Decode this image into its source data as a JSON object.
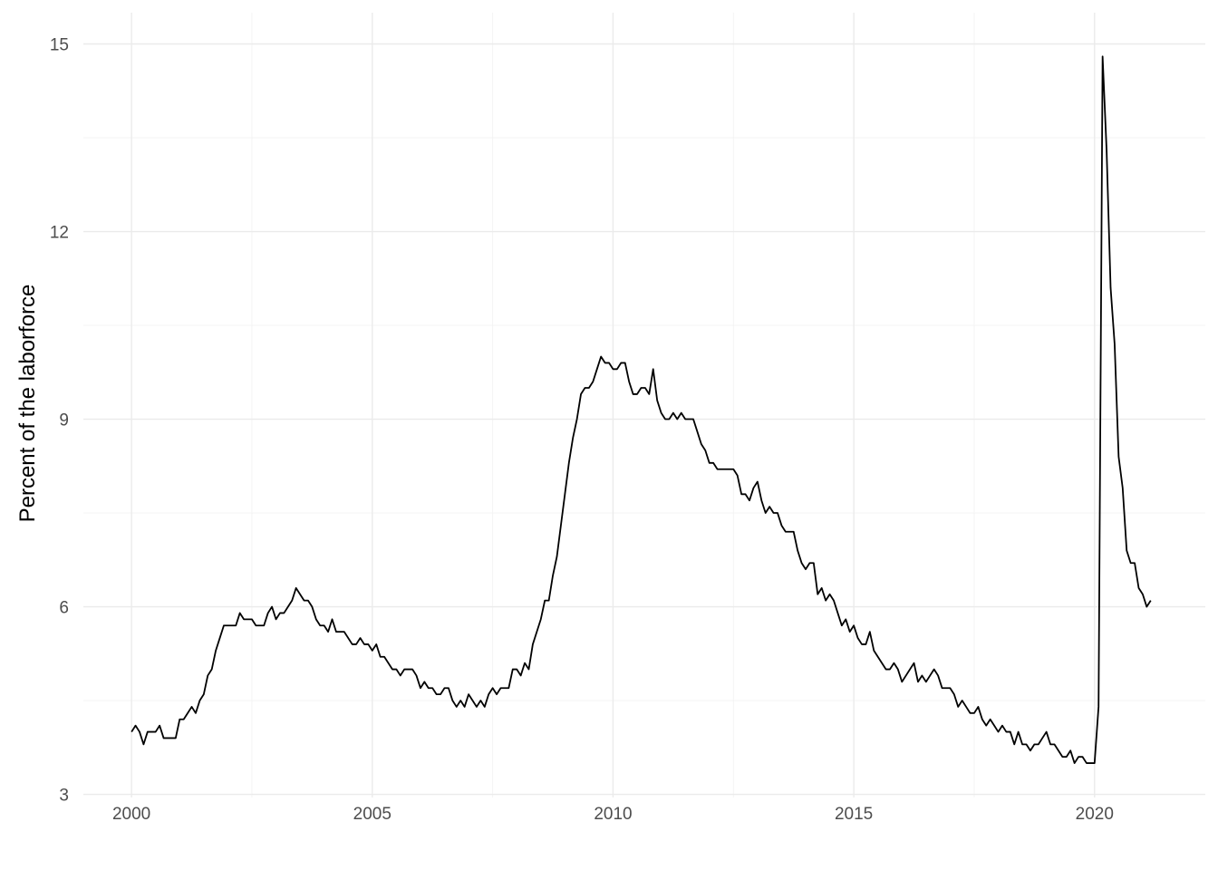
{
  "chart_data": {
    "type": "line",
    "title": "",
    "xlabel": "",
    "ylabel": "Percent of the laborforce",
    "xlim": [
      1999,
      2022.3
    ],
    "ylim": [
      2.95,
      15.5
    ],
    "x_ticks": [
      2000,
      2005,
      2010,
      2015,
      2020
    ],
    "x_tick_labels": [
      "2000",
      "2005",
      "2010",
      "2015",
      "2020"
    ],
    "y_ticks": [
      3,
      6,
      9,
      12,
      15
    ],
    "y_tick_labels": [
      "3",
      "6",
      "9",
      "12",
      "15"
    ],
    "grid": true,
    "legend": "none",
    "series": [
      {
        "x_start": 2000.0,
        "x_step_months": 1,
        "values": [
          4.0,
          4.1,
          4.0,
          3.8,
          4.0,
          4.0,
          4.0,
          4.1,
          3.9,
          3.9,
          3.9,
          3.9,
          4.2,
          4.2,
          4.3,
          4.4,
          4.3,
          4.5,
          4.6,
          4.9,
          5.0,
          5.3,
          5.5,
          5.7,
          5.7,
          5.7,
          5.7,
          5.9,
          5.8,
          5.8,
          5.8,
          5.7,
          5.7,
          5.7,
          5.9,
          6.0,
          5.8,
          5.9,
          5.9,
          6.0,
          6.1,
          6.3,
          6.2,
          6.1,
          6.1,
          6.0,
          5.8,
          5.7,
          5.7,
          5.6,
          5.8,
          5.6,
          5.6,
          5.6,
          5.5,
          5.4,
          5.4,
          5.5,
          5.4,
          5.4,
          5.3,
          5.4,
          5.2,
          5.2,
          5.1,
          5.0,
          5.0,
          4.9,
          5.0,
          5.0,
          5.0,
          4.9,
          4.7,
          4.8,
          4.7,
          4.7,
          4.6,
          4.6,
          4.7,
          4.7,
          4.5,
          4.4,
          4.5,
          4.4,
          4.6,
          4.5,
          4.4,
          4.5,
          4.4,
          4.6,
          4.7,
          4.6,
          4.7,
          4.7,
          4.7,
          5.0,
          5.0,
          4.9,
          5.1,
          5.0,
          5.4,
          5.6,
          5.8,
          6.1,
          6.1,
          6.5,
          6.8,
          7.3,
          7.8,
          8.3,
          8.7,
          9.0,
          9.4,
          9.5,
          9.5,
          9.6,
          9.8,
          10.0,
          9.9,
          9.9,
          9.8,
          9.8,
          9.9,
          9.9,
          9.6,
          9.4,
          9.4,
          9.5,
          9.5,
          9.4,
          9.8,
          9.3,
          9.1,
          9.0,
          9.0,
          9.1,
          9.0,
          9.1,
          9.0,
          9.0,
          9.0,
          8.8,
          8.6,
          8.5,
          8.3,
          8.3,
          8.2,
          8.2,
          8.2,
          8.2,
          8.2,
          8.1,
          7.8,
          7.8,
          7.7,
          7.9,
          8.0,
          7.7,
          7.5,
          7.6,
          7.5,
          7.5,
          7.3,
          7.2,
          7.2,
          7.2,
          6.9,
          6.7,
          6.6,
          6.7,
          6.7,
          6.2,
          6.3,
          6.1,
          6.2,
          6.1,
          5.9,
          5.7,
          5.8,
          5.6,
          5.7,
          5.5,
          5.4,
          5.4,
          5.6,
          5.3,
          5.2,
          5.1,
          5.0,
          5.0,
          5.1,
          5.0,
          4.8,
          4.9,
          5.0,
          5.1,
          4.8,
          4.9,
          4.8,
          4.9,
          5.0,
          4.9,
          4.7,
          4.7,
          4.7,
          4.6,
          4.4,
          4.5,
          4.4,
          4.3,
          4.3,
          4.4,
          4.2,
          4.1,
          4.2,
          4.1,
          4.0,
          4.1,
          4.0,
          4.0,
          3.8,
          4.0,
          3.8,
          3.8,
          3.7,
          3.8,
          3.8,
          3.9,
          4.0,
          3.8,
          3.8,
          3.7,
          3.6,
          3.6,
          3.7,
          3.5,
          3.6,
          3.6,
          3.5,
          3.5,
          3.5,
          4.4,
          14.8,
          13.3,
          11.1,
          10.2,
          8.4,
          7.9,
          6.9,
          6.7,
          6.7,
          6.3,
          6.2,
          6.0,
          6.1
        ]
      }
    ]
  }
}
